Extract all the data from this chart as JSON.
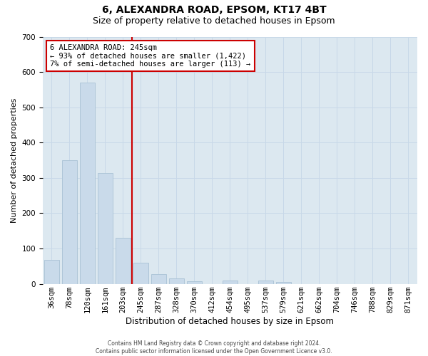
{
  "title1": "6, ALEXANDRA ROAD, EPSOM, KT17 4BT",
  "title2": "Size of property relative to detached houses in Epsom",
  "xlabel": "Distribution of detached houses by size in Epsom",
  "ylabel": "Number of detached properties",
  "categories": [
    "36sqm",
    "78sqm",
    "120sqm",
    "161sqm",
    "203sqm",
    "245sqm",
    "287sqm",
    "328sqm",
    "370sqm",
    "412sqm",
    "454sqm",
    "495sqm",
    "537sqm",
    "579sqm",
    "621sqm",
    "662sqm",
    "704sqm",
    "746sqm",
    "788sqm",
    "829sqm",
    "871sqm"
  ],
  "values": [
    68,
    350,
    570,
    313,
    130,
    60,
    27,
    15,
    8,
    0,
    10,
    0,
    9,
    5,
    0,
    0,
    0,
    0,
    0,
    0,
    0
  ],
  "bar_color": "#c9daea",
  "bar_edge_color": "#aec6d8",
  "highlight_line_color": "#cc0000",
  "annotation_text": "6 ALEXANDRA ROAD: 245sqm\n← 93% of detached houses are smaller (1,422)\n7% of semi-detached houses are larger (113) →",
  "annotation_box_color": "#ffffff",
  "annotation_box_edge_color": "#cc0000",
  "ylim": [
    0,
    700
  ],
  "yticks": [
    0,
    100,
    200,
    300,
    400,
    500,
    600,
    700
  ],
  "grid_color": "#c8d8e8",
  "plot_bg_color": "#dce8f0",
  "footer_text": "Contains HM Land Registry data © Crown copyright and database right 2024.\nContains public sector information licensed under the Open Government Licence v3.0.",
  "title1_fontsize": 10,
  "title2_fontsize": 9,
  "xlabel_fontsize": 8.5,
  "ylabel_fontsize": 8,
  "tick_fontsize": 7.5,
  "annot_fontsize": 7.5,
  "footer_fontsize": 5.5
}
